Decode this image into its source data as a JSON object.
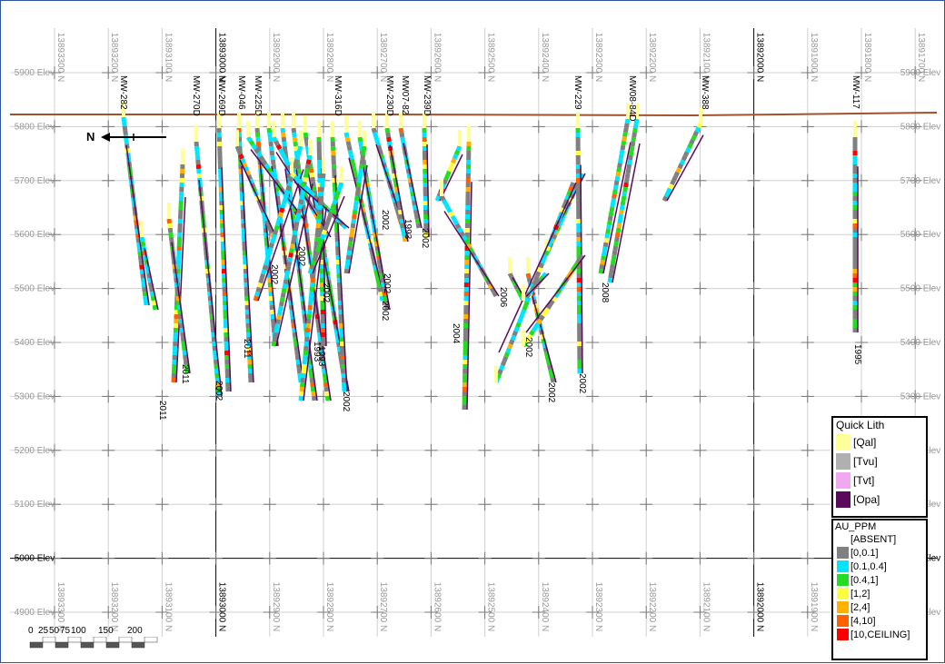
{
  "section": {
    "northings": [
      "13893300 N",
      "13893200 N",
      "13893100 N",
      "13893000 N",
      "13892900 N",
      "13892800 N",
      "13892700 N",
      "13892600 N",
      "13892500 N",
      "13892400 N",
      "13892300 N",
      "13892200 N",
      "13892100 N",
      "13892000 N",
      "13891900 N",
      "13891800 N",
      "13891700 N"
    ],
    "elevations": [
      "5900 Elev",
      "5800 Elev",
      "5700 Elev",
      "5600 Elev",
      "5500 Elev",
      "5400 Elev",
      "5300 Elev",
      "5200 Elev",
      "5100 Elev",
      "5000 Elev",
      "4900 Elev"
    ],
    "north_arrow": "N",
    "colors": {
      "topography": "#a0522d",
      "grid": "#9a9a9a",
      "border": "#2f5597"
    }
  },
  "holes": [
    {
      "name": "MW-282",
      "year": "2011"
    },
    {
      "name": "MW-270D",
      "year": "2011"
    },
    {
      "name": "MW-269D",
      "year": "2002"
    },
    {
      "name": "MW-046",
      "year": "2011"
    },
    {
      "name": "MW-225D",
      "year": "2002"
    },
    {
      "name": "MW-316D",
      "year": "2002"
    },
    {
      "name": "MW-230D",
      "year": "2002"
    },
    {
      "name": "MW07-82",
      "year": "1993"
    },
    {
      "name": "MW-239D",
      "year": "2002"
    },
    {
      "name": "MW-229",
      "year": "2002"
    },
    {
      "name": "MW08-84D",
      "year": "2008"
    },
    {
      "name": "MW-388",
      "year": "2006"
    },
    {
      "name": "MW-117",
      "year": "1995"
    }
  ],
  "extra_labels": [
    "2004",
    "2002",
    "2002",
    "1993",
    "2002",
    "2002",
    "2002",
    "1993",
    "2002"
  ],
  "legend_lith": {
    "title": "Quick Lith",
    "items": [
      {
        "label": "[Qal]",
        "color": "#ffff99"
      },
      {
        "label": "[Tvu]",
        "color": "#b0b0b0"
      },
      {
        "label": "[Tvt]",
        "color": "#f0a8f0"
      },
      {
        "label": "[Opa]",
        "color": "#5a0a5a"
      }
    ]
  },
  "legend_au": {
    "title": "AU_PPM",
    "items": [
      {
        "label": "[ABSENT]",
        "color": "#ffffff"
      },
      {
        "label": "[0,0.1]",
        "color": "#808080"
      },
      {
        "label": "[0.1,0.4]",
        "color": "#00e5ff"
      },
      {
        "label": "[0.4,1]",
        "color": "#22dd22"
      },
      {
        "label": "[1,2]",
        "color": "#ffff40"
      },
      {
        "label": "[2,4]",
        "color": "#ffb000"
      },
      {
        "label": "[4,10]",
        "color": "#ff6000"
      },
      {
        "label": "[10,CEILING]",
        "color": "#ff0000"
      }
    ]
  },
  "scale": {
    "ticks": [
      "0",
      "25",
      "50",
      "75",
      "100",
      "150",
      "200"
    ]
  }
}
